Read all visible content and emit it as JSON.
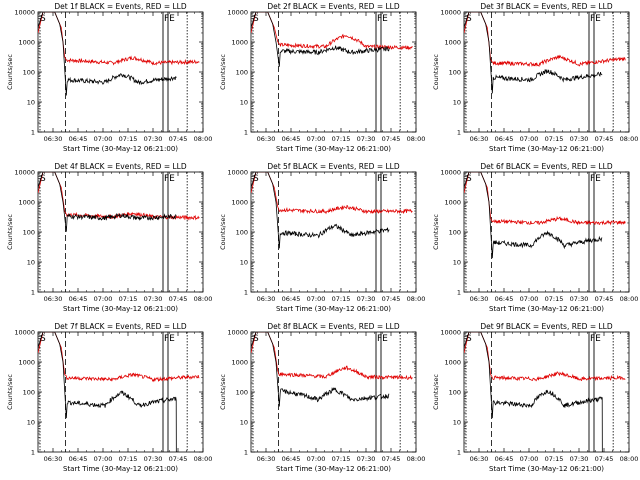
{
  "figure": {
    "charts": [
      {
        "id": "1f",
        "title": "Det 1f BLACK = Events, RED = LLD",
        "start_time": "Start Time (30-May-12 06:21:00)"
      },
      {
        "id": "2f",
        "title": "Det 2f BLACK = Events, RED = LLD",
        "start_time": "Start Time (30-May-12 06:21:00)"
      },
      {
        "id": "3f",
        "title": "Det 3f BLACK = Events, RED = LLD",
        "start_time": "Start Time (30-May-12 06:21:00)"
      },
      {
        "id": "4f",
        "title": "Det 4f BLACK = Events, RED = LLD",
        "start_time": "Start Time (30-May-12 06:21:00)"
      },
      {
        "id": "5f",
        "title": "Det 5f BLACK = Events, RED = LLD",
        "start_time": "Start Time (30-May-12 06:21:00)"
      },
      {
        "id": "6f",
        "title": "Det 6f BLACK = Events, RED = LLD",
        "start_time": "Start Time (30-May-12 06:21:00)"
      },
      {
        "id": "7f",
        "title": "Det 7f BLACK = Events, RED = LLD",
        "start_time": "Start Time (30-May-12 06:21:00)"
      },
      {
        "id": "8f",
        "title": "Det 8f BLACK = Events, RED = LLD",
        "start_time": "Start Time (30-May-12 06:21:00)"
      },
      {
        "id": "9f",
        "title": "Det 9f BLACK = Events, RED = LLD",
        "start_time": "Start Time (30-May-12 06:21:00)"
      }
    ]
  },
  "chart_data": {
    "type": "line",
    "ylabel": "Counts/sec",
    "yscale": "log",
    "ylim": [
      1,
      10000
    ],
    "yticks": [
      "1",
      "10",
      "100",
      "1000",
      "10000"
    ],
    "xlim_minutes": [
      21,
      120
    ],
    "xticks": [
      "06:30",
      "06:45",
      "07:00",
      "07:15",
      "07:30",
      "07:45",
      "08:00"
    ],
    "xtick_minutes": [
      30,
      45,
      60,
      75,
      90,
      105,
      120
    ],
    "markers": {
      "saa_exit": "S",
      "saa_entry": "SE",
      "flag": "F",
      "f_entry": "FE"
    },
    "series_names": [
      "BLACK = Events",
      "RED = LLD"
    ],
    "panels": [
      {
        "id": "1f",
        "lld": {
          "start": 250,
          "dip": 200,
          "peak": 300,
          "end": 220
        },
        "events": {
          "start": 55,
          "dip": 45,
          "peak": 85,
          "end": 65
        },
        "drop": false
      },
      {
        "id": "2f",
        "lld": {
          "start": 800,
          "dip": 700,
          "peak": 1700,
          "end": 650
        },
        "events": {
          "start": 500,
          "dip": 450,
          "peak": 650,
          "end": 600
        },
        "drop": false
      },
      {
        "id": "3f",
        "lld": {
          "start": 200,
          "dip": 180,
          "peak": 320,
          "end": 280
        },
        "events": {
          "start": 65,
          "dip": 55,
          "peak": 110,
          "end": 85
        },
        "drop": false
      },
      {
        "id": "4f",
        "lld": {
          "start": 380,
          "dip": 320,
          "peak": 420,
          "end": 300
        },
        "events": {
          "start": 340,
          "dip": 290,
          "peak": 360,
          "end": 330
        },
        "drop": false
      },
      {
        "id": "5f",
        "lld": {
          "start": 550,
          "dip": 480,
          "peak": 700,
          "end": 500
        },
        "events": {
          "start": 95,
          "dip": 75,
          "peak": 160,
          "end": 120
        },
        "drop": false
      },
      {
        "id": "6f",
        "lld": {
          "start": 230,
          "dip": 200,
          "peak": 280,
          "end": 210
        },
        "events": {
          "start": 45,
          "dip": 35,
          "peak": 95,
          "end": 60
        },
        "drop": false
      },
      {
        "id": "7f",
        "lld": {
          "start": 300,
          "dip": 260,
          "peak": 380,
          "end": 330
        },
        "events": {
          "start": 45,
          "dip": 35,
          "peak": 95,
          "end": 60
        },
        "drop": true
      },
      {
        "id": "8f",
        "lld": {
          "start": 400,
          "dip": 320,
          "peak": 650,
          "end": 300
        },
        "events": {
          "start": 110,
          "dip": 55,
          "peak": 120,
          "end": 75
        },
        "drop": false
      },
      {
        "id": "9f",
        "lld": {
          "start": 300,
          "dip": 270,
          "peak": 420,
          "end": 300
        },
        "events": {
          "start": 45,
          "dip": 35,
          "peak": 110,
          "end": 60
        },
        "drop": true
      }
    ]
  }
}
